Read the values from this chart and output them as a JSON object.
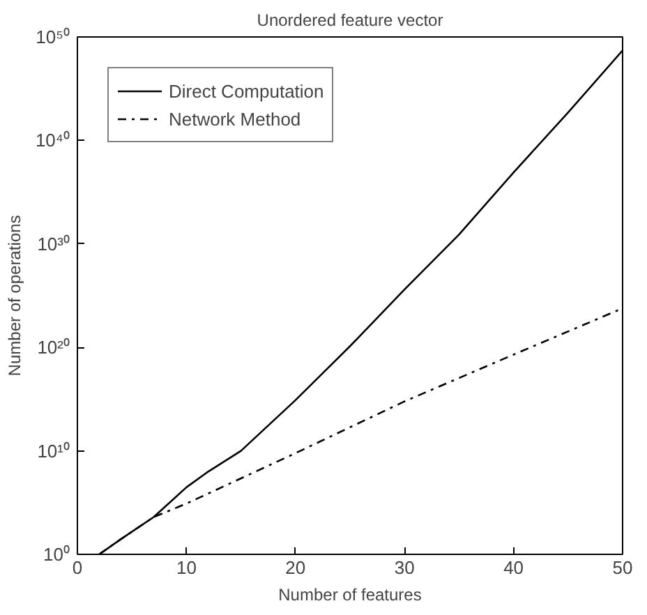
{
  "chart_data": {
    "type": "line",
    "title": "Unordered feature vector",
    "xlabel": "Number of features",
    "ylabel": "Number of operations",
    "log": "y",
    "grid": false,
    "legend": "top left",
    "marker": "none",
    "xlim": [
      0,
      50
    ],
    "xticks": [
      0,
      10,
      20,
      30,
      40,
      50
    ],
    "ylim": [
      1,
      1e+50
    ],
    "yticks": [
      {
        "value": 1,
        "label": "10⁰"
      },
      {
        "value": 10000000000.0,
        "label": "10¹⁰"
      },
      {
        "value": 1e+20,
        "label": "10²⁰"
      },
      {
        "value": 1e+30,
        "label": "10³⁰"
      },
      {
        "value": 1e+40,
        "label": "10⁴⁰"
      },
      {
        "value": 1e+50,
        "label": "10⁵⁰"
      }
    ],
    "series": [
      {
        "name": "Direct Computation",
        "color": "#000000",
        "line_style": "solid",
        "x": [
          2,
          4,
          7,
          10,
          12,
          15,
          20,
          25,
          30,
          35,
          40,
          45,
          50
        ],
        "values": [
          1,
          30.0,
          4000.0,
          3000000.0,
          100000000.0,
          10000000000.0,
          800000000000000.0,
          1.3e+20,
          4e+25,
          8e+30,
          8e+36,
          5e+42,
          5e+48
        ]
      },
      {
        "name": "Network Method",
        "color": "#000000",
        "line_style": "dashdot",
        "x": [
          2,
          4,
          7,
          10,
          20,
          30,
          40,
          50
        ],
        "values": [
          1,
          30.0,
          4000.0,
          80000.0,
          6000000000.0,
          600000000000000.0,
          2e+19,
          6e+23
        ]
      }
    ]
  }
}
